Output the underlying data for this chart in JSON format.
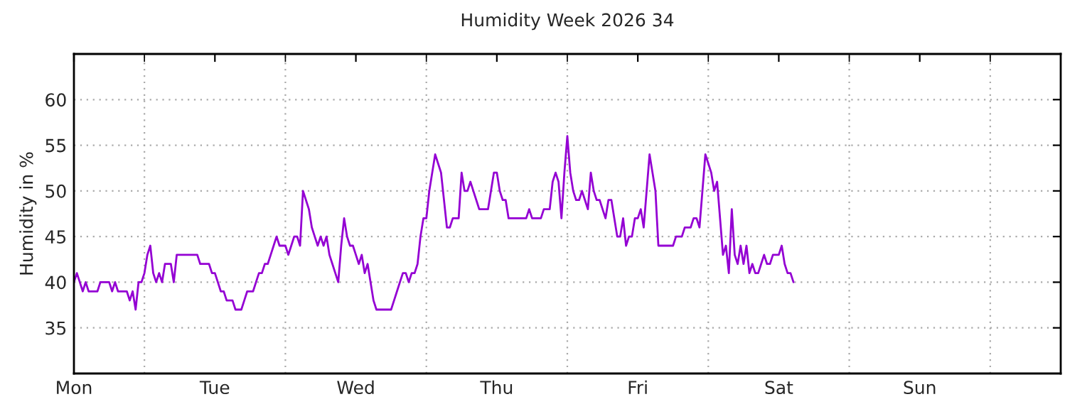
{
  "chart_data": {
    "type": "line",
    "title": "Humidity Week 2026 34",
    "ylabel": "Humidity in %",
    "ylim": [
      30,
      65
    ],
    "yticks": [
      35,
      40,
      45,
      50,
      55,
      60
    ],
    "grid": true,
    "marker": "none",
    "line_style": "solid",
    "categories": [
      "Mon",
      null,
      null,
      null,
      null,
      null,
      null,
      null,
      null,
      null,
      null,
      null,
      null,
      null,
      null,
      null,
      null,
      null,
      null,
      null,
      null,
      null,
      null,
      null,
      null,
      null,
      null,
      null,
      null,
      null,
      null,
      null,
      null,
      null,
      null,
      null,
      null,
      null,
      null,
      null,
      null,
      null,
      null,
      null,
      null,
      null,
      null,
      null,
      "Tue",
      null,
      null,
      null,
      null,
      null,
      null,
      null,
      null,
      null,
      null,
      null,
      null,
      null,
      null,
      null,
      null,
      null,
      null,
      null,
      null,
      null,
      null,
      null,
      null,
      null,
      null,
      null,
      null,
      null,
      null,
      null,
      null,
      null,
      null,
      null,
      null,
      null,
      null,
      null,
      null,
      null,
      null,
      null,
      null,
      null,
      null,
      null,
      "Wed",
      null,
      null,
      null,
      null,
      null,
      null,
      null,
      null,
      null,
      null,
      null,
      null,
      null,
      null,
      null,
      null,
      null,
      null,
      null,
      null,
      null,
      null,
      null,
      null,
      null,
      null,
      null,
      null,
      null,
      null,
      null,
      null,
      null,
      null,
      null,
      null,
      null,
      null,
      null,
      null,
      null,
      null,
      null,
      null,
      null,
      null,
      null,
      "Thu",
      null,
      null,
      null,
      null,
      null,
      null,
      null,
      null,
      null,
      null,
      null,
      null,
      null,
      null,
      null,
      null,
      null,
      null,
      null,
      null,
      null,
      null,
      null,
      null,
      null,
      null,
      null,
      null,
      null,
      null,
      null,
      null,
      null,
      null,
      null,
      null,
      null,
      null,
      null,
      null,
      null,
      null,
      null,
      null,
      null,
      null,
      null,
      "Fri",
      null,
      null,
      null,
      null,
      null,
      null,
      null,
      null,
      null,
      null,
      null,
      null,
      null,
      null,
      null,
      null,
      null,
      null,
      null,
      null,
      null,
      null,
      null,
      null,
      null,
      null,
      null,
      null,
      null,
      null,
      null,
      null,
      null,
      null,
      null,
      null,
      null,
      null,
      null,
      null,
      null,
      null,
      null,
      null,
      null,
      null,
      null,
      "Sat",
      null,
      null,
      null,
      null,
      null,
      null,
      null,
      null,
      null,
      null,
      null,
      null,
      null,
      null,
      null,
      null,
      null,
      null,
      null,
      null,
      null,
      null,
      null,
      null,
      null,
      null,
      null,
      null,
      null,
      null,
      null,
      null,
      null,
      null,
      null,
      null,
      null,
      null,
      null,
      null,
      null,
      null,
      null,
      null,
      null,
      null,
      null,
      "Sun",
      null,
      null,
      null,
      null,
      null,
      null,
      null,
      null,
      null,
      null,
      null,
      null,
      null,
      null,
      null,
      null,
      null,
      null,
      null,
      null,
      null,
      null,
      null,
      null,
      null,
      null,
      null,
      null,
      null,
      null,
      null,
      null,
      null,
      null,
      null,
      null,
      null,
      null,
      null,
      null,
      null,
      null,
      null,
      null,
      null,
      null,
      null
    ],
    "series": [
      {
        "color": "#9400d3",
        "values": [
          40,
          41,
          40,
          39,
          40,
          39,
          39,
          39,
          39,
          40,
          40,
          40,
          40,
          39,
          40,
          39,
          39,
          39,
          39,
          38,
          39,
          37,
          40,
          40,
          41,
          43,
          44,
          41,
          40,
          41,
          40,
          42,
          42,
          42,
          40,
          43,
          43,
          43,
          43,
          43,
          43,
          43,
          43,
          42,
          42,
          42,
          42,
          41,
          41,
          40,
          39,
          39,
          38,
          38,
          38,
          37,
          37,
          37,
          38,
          39,
          39,
          39,
          40,
          41,
          41,
          42,
          42,
          43,
          44,
          45,
          44,
          44,
          44,
          43,
          44,
          45,
          45,
          44,
          50,
          49,
          48,
          46,
          45,
          44,
          45,
          44,
          45,
          43,
          42,
          41,
          40,
          44,
          47,
          45,
          44,
          44,
          43,
          42,
          43,
          41,
          42,
          40,
          38,
          37,
          37,
          37,
          37,
          37,
          37,
          38,
          39,
          40,
          41,
          41,
          40,
          41,
          41,
          42,
          45,
          47,
          47,
          50,
          52,
          54,
          53,
          52,
          49,
          46,
          46,
          47,
          47,
          47,
          52,
          50,
          50,
          51,
          50,
          49,
          48,
          48,
          48,
          48,
          50,
          52,
          52,
          50,
          49,
          49,
          47,
          47,
          47,
          47,
          47,
          47,
          47,
          48,
          47,
          47,
          47,
          47,
          48,
          48,
          48,
          51,
          52,
          51,
          47,
          52,
          56,
          52,
          50,
          49,
          49,
          50,
          49,
          48,
          52,
          50,
          49,
          49,
          48,
          47,
          49,
          49,
          47,
          45,
          45,
          47,
          44,
          45,
          45,
          47,
          47,
          48,
          46,
          50,
          54,
          52,
          50,
          44,
          44,
          44,
          44,
          44,
          44,
          45,
          45,
          45,
          46,
          46,
          46,
          47,
          47,
          46,
          50,
          54,
          53,
          52,
          50,
          51,
          47,
          43,
          44,
          41,
          48,
          43,
          42,
          44,
          42,
          44,
          41,
          42,
          41,
          41,
          42,
          43,
          42,
          42,
          43,
          43,
          43,
          44,
          42,
          41,
          41,
          40,
          null,
          null,
          null,
          null,
          null,
          null,
          null,
          null,
          null,
          null,
          null,
          null,
          null,
          null,
          null,
          null,
          null,
          null,
          null,
          null,
          null,
          null,
          null,
          null,
          null,
          null,
          null,
          null,
          null,
          null,
          null,
          null,
          null,
          null,
          null,
          null,
          null,
          null,
          null,
          null,
          null,
          null,
          null,
          null,
          null,
          null,
          null,
          null,
          null,
          null,
          null,
          null,
          null,
          null,
          null,
          null,
          null,
          null,
          null,
          null,
          null,
          null,
          null,
          null,
          null,
          null,
          null,
          null,
          null,
          null,
          null,
          null,
          null,
          null,
          null,
          null,
          null,
          null,
          null,
          null,
          null,
          null,
          null,
          null,
          null,
          null,
          null,
          null,
          null,
          null
        ]
      }
    ]
  }
}
